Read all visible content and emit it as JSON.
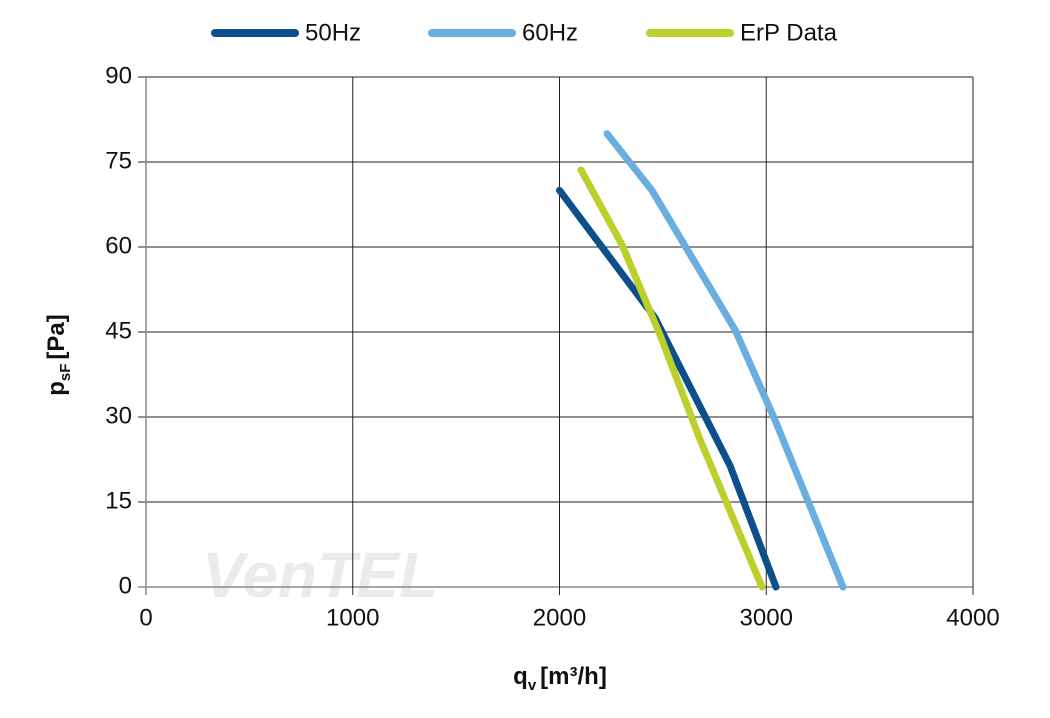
{
  "chart_data": {
    "type": "line",
    "xlabel": {
      "symbol": "q",
      "subscript": "v",
      "unit": "[m³/h]"
    },
    "ylabel": {
      "symbol": "p",
      "subscript": "sF",
      "unit": "[Pa]"
    },
    "watermark": "VenTEL",
    "xlim": [
      0,
      4000
    ],
    "xticks": [
      0,
      1000,
      2000,
      3000,
      4000
    ],
    "ylim": [
      0,
      90
    ],
    "yticks": [
      0,
      15,
      30,
      45,
      60,
      75,
      90
    ],
    "grid": true,
    "legend": "top",
    "series": [
      {
        "name": "50Hz",
        "color": "#0d4f8b",
        "x": [
          2000,
          2462,
          2825,
          3047
        ],
        "values": [
          70,
          47.5,
          21.4,
          0
        ]
      },
      {
        "name": "60Hz",
        "color": "#6aaee0",
        "x": [
          2230,
          2447,
          2849,
          3042,
          3371
        ],
        "values": [
          80,
          70,
          45.4,
          29.5,
          0
        ]
      },
      {
        "name": "ErP Data",
        "color": "#bccf2a",
        "x": [
          2104,
          2302,
          2486,
          2680,
          2979
        ],
        "values": [
          73.6,
          60.4,
          44.5,
          26,
          0
        ]
      }
    ]
  }
}
